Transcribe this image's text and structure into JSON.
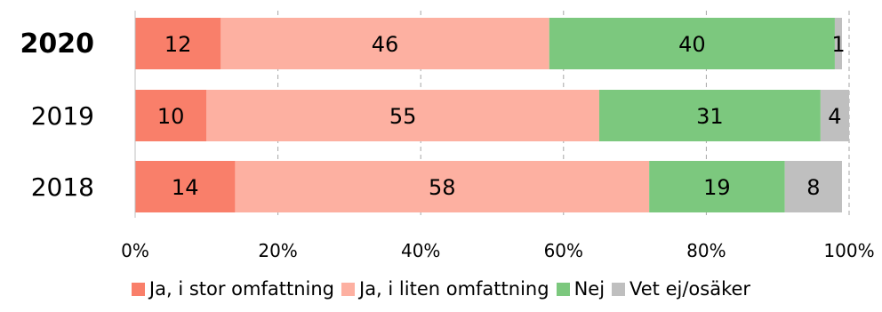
{
  "chart_data": {
    "type": "bar",
    "orientation": "horizontal",
    "stacked": true,
    "categories": [
      "2020",
      "2019",
      "2018"
    ],
    "highlighted_category": "2020",
    "series": [
      {
        "name": "Ja, i stor omfattning",
        "color": "#f97f6a",
        "values": [
          12,
          10,
          14
        ]
      },
      {
        "name": "Ja, i liten omfattning",
        "color": "#fdb0a1",
        "values": [
          46,
          55,
          58
        ]
      },
      {
        "name": "Nej",
        "color": "#7cc87e",
        "values": [
          40,
          31,
          19
        ]
      },
      {
        "name": "Vet ej/osäker",
        "color": "#bfbfbf",
        "values": [
          1,
          4,
          8
        ]
      }
    ],
    "xlim": [
      0,
      100
    ],
    "x_ticks": [
      "0%",
      "20%",
      "40%",
      "60%",
      "80%",
      "100%"
    ],
    "grid": "vertical dashed",
    "legend_position": "bottom"
  }
}
